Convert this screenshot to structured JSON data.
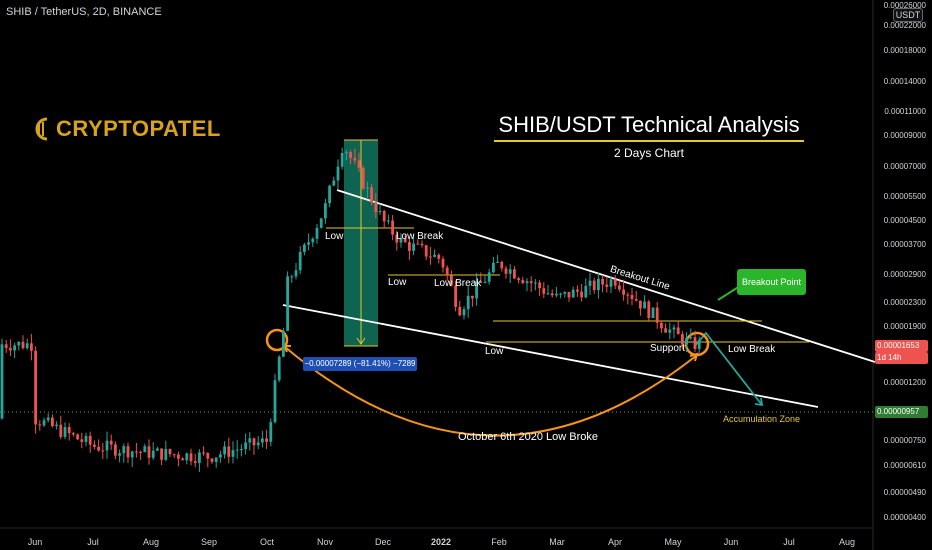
{
  "header": {
    "symbol_line": "SHIB / TetherUS, 2D, BINANCE",
    "currency_badge": "USDT"
  },
  "logo": {
    "text": "CRYPTOPATEL"
  },
  "analysis": {
    "title": "SHIB/USDT Technical Analysis",
    "subtitle": "2 Days Chart"
  },
  "annotations": {
    "low_1": "Low",
    "low_break_1": "Low Break",
    "low_2": "Low",
    "low_break_2": "Low Break",
    "low_3": "Low",
    "support": "Support",
    "low_break_3": "Low Break",
    "breakout_line": "Breakout Line",
    "breakout_point": "Breakout Point",
    "measure": "−0.00007289 (−81.41%) −7289",
    "oct_note": "October 6th 2020 Low Broke",
    "accumulation": "Accumulation Zone"
  },
  "price_tags": {
    "current": "0.00001653",
    "countdown": "1d 14h",
    "level": "0.00000957"
  },
  "colors": {
    "up": "#26a69a",
    "down": "#ef5350",
    "accent": "#e6c82a",
    "teal_box": "#0f6e5a",
    "orange": "#f7931a",
    "blue_label": "#1e50b4",
    "green_label": "#2bb52b"
  },
  "chart_data": {
    "type": "candlestick",
    "y_scale": "log",
    "y_ticks": [
      "0.00026000",
      "0.00022000",
      "0.00018000",
      "0.00014000",
      "0.00011000",
      "0.00009000",
      "0.00007000",
      "0.00005500",
      "0.00004500",
      "0.00003700",
      "0.00002900",
      "0.00002300",
      "0.00001900",
      "0.00001200",
      "0.00000750",
      "0.00000610",
      "0.00000490",
      "0.00000400"
    ],
    "x_ticks": [
      "Jun",
      "Jul",
      "Aug",
      "Sep",
      "Oct",
      "Nov",
      "Dec",
      "2022",
      "Feb",
      "Mar",
      "Apr",
      "May",
      "Jun",
      "Jul",
      "Aug"
    ],
    "close_path": [
      [
        "Jun",
        9e-06
      ],
      [
        "Jul",
        7.2e-06
      ],
      [
        "Aug",
        6.8e-06
      ],
      [
        "Sep",
        6.6e-06
      ],
      [
        "Oct",
        7.5e-06
      ],
      [
        "Oct",
        2e-05
      ],
      [
        "Oct",
        2.6e-05
      ],
      [
        "Nov",
        5e-05
      ],
      [
        "Nov",
        8.5e-05
      ],
      [
        "Dec",
        4.5e-05
      ],
      [
        "Dec",
        3.8e-05
      ],
      [
        "2022",
        3.3e-05
      ],
      [
        "2022",
        2.2e-05
      ],
      [
        "Feb",
        3.2e-05
      ],
      [
        "Mar",
        2.4e-05
      ],
      [
        "Apr",
        2.8e-05
      ],
      [
        "May",
        1.8e-05
      ],
      [
        "May",
        1.65e-05
      ]
    ],
    "levels": [
      9.57e-06,
      1.653e-05
    ]
  }
}
